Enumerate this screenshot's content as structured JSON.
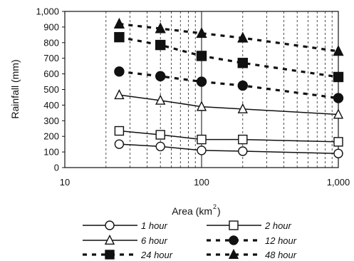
{
  "chart_data": {
    "type": "line",
    "xlabel": "Area (km",
    "xlabel_sup": "2",
    "xlabel_close": ")",
    "ylabel": "Rainfall (mm)",
    "x_scale": "log",
    "xlim": [
      10,
      1000
    ],
    "ylim": [
      0,
      1000
    ],
    "x_tick_labels": [
      "10",
      "100",
      "1,000"
    ],
    "y_tick_labels": [
      "0",
      "100",
      "200",
      "300",
      "400",
      "500",
      "600",
      "700",
      "800",
      "900",
      "1,000"
    ],
    "grid": "vertical dashed minor, solid at 100",
    "legend_position": "bottom",
    "x": [
      25,
      50,
      100,
      200,
      1000
    ],
    "series": [
      {
        "name": "1 hour",
        "values": [
          150,
          135,
          110,
          105,
          90
        ],
        "marker": "circle-open",
        "line": "solid"
      },
      {
        "name": "2 hour",
        "values": [
          235,
          210,
          180,
          180,
          165
        ],
        "marker": "square-open",
        "line": "solid"
      },
      {
        "name": "6 hour",
        "values": [
          465,
          430,
          390,
          375,
          340
        ],
        "marker": "triangle-open",
        "line": "solid"
      },
      {
        "name": "12 hour",
        "values": [
          615,
          585,
          550,
          525,
          445
        ],
        "marker": "circle-filled",
        "line": "dashed"
      },
      {
        "name": "24 hour",
        "values": [
          835,
          785,
          715,
          670,
          580
        ],
        "marker": "square-filled",
        "line": "dashed"
      },
      {
        "name": "48 hour",
        "values": [
          920,
          890,
          860,
          830,
          745
        ],
        "marker": "triangle-filled",
        "line": "dashed"
      }
    ]
  }
}
